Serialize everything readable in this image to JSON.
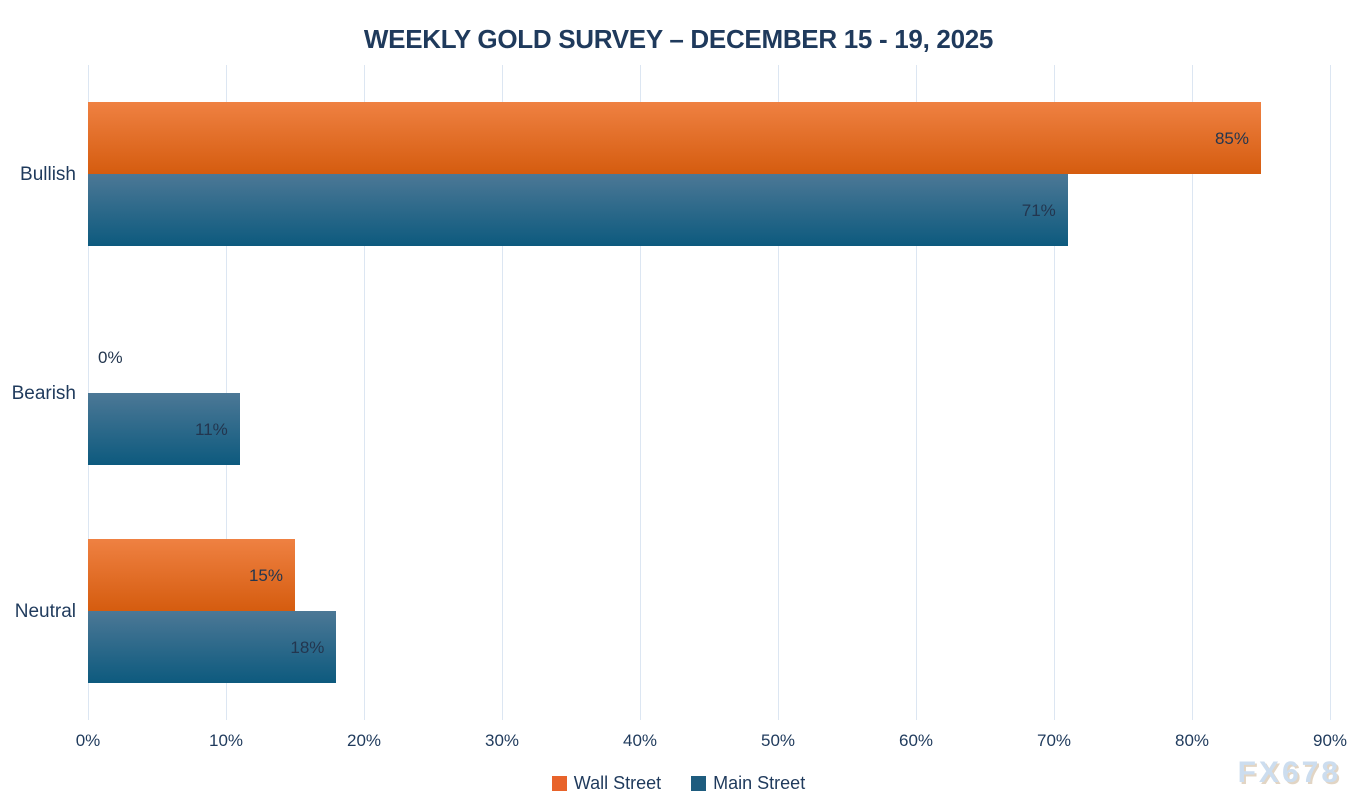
{
  "title": "WEEKLY GOLD SURVEY – DECEMBER 15 - 19, 2025",
  "watermark": "FX678",
  "chart_data": {
    "type": "bar",
    "orientation": "horizontal",
    "title": "WEEKLY GOLD SURVEY – DECEMBER 15 - 19, 2025",
    "categories": [
      "Bullish",
      "Bearish",
      "Neutral"
    ],
    "series": [
      {
        "name": "Wall Street",
        "values": [
          85,
          0,
          15
        ],
        "data_labels": [
          "85%",
          "0%",
          "15%"
        ],
        "color_top": "#EF8142",
        "color_bottom": "#D55C0F",
        "legend_color": "#E8632A"
      },
      {
        "name": "Main Street",
        "values": [
          71,
          11,
          18
        ],
        "data_labels": [
          "71%",
          "11%",
          "18%"
        ],
        "color_top": "#4C7896",
        "color_bottom": "#0D5A7E",
        "legend_color": "#1E5C7E"
      }
    ],
    "xlabel": "",
    "ylabel": "",
    "x_ticks": [
      "0%",
      "10%",
      "20%",
      "30%",
      "40%",
      "50%",
      "60%",
      "70%",
      "80%",
      "90%"
    ],
    "xlim": [
      0,
      90
    ],
    "grid": true,
    "legend_position": "bottom"
  },
  "style": {
    "grid_color": "#DCE6F2",
    "axis_text_color": "#1F3A5C",
    "value_label_color": "#23364F",
    "background": "#FFFFFF",
    "watermark_color": "#CCDDEF"
  }
}
